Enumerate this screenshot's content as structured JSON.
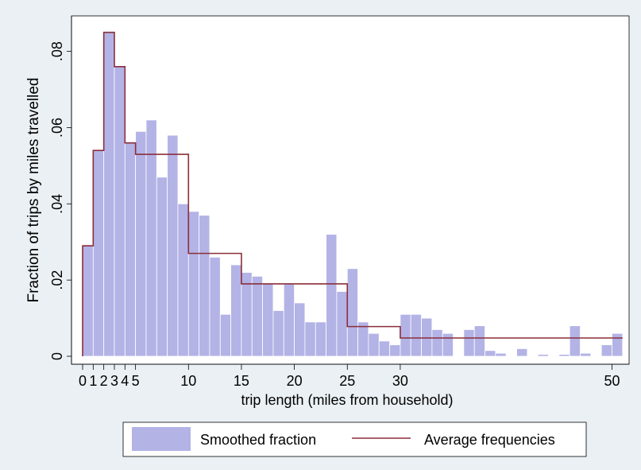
{
  "chart_data": {
    "type": "bar",
    "xlabel": "trip length (miles from household)",
    "ylabel": "Fraction of trips by miles travelled",
    "x_ticks": [
      0,
      1,
      2,
      3,
      4,
      5,
      10,
      15,
      20,
      25,
      30,
      50
    ],
    "x_tick_labels": [
      "0",
      "1",
      "2",
      "3",
      "4",
      "5",
      "10",
      "15",
      "20",
      "25",
      "30",
      "50"
    ],
    "y_ticks": [
      0,
      0.02,
      0.04,
      0.06,
      0.08
    ],
    "y_tick_labels": [
      "0",
      ".02",
      ".04",
      ".06",
      ".08"
    ],
    "xlim": [
      -0.5,
      51
    ],
    "ylim": [
      0,
      0.09
    ],
    "grid": false,
    "legend_position": "bottom",
    "colors": {
      "bar_fill": "#b3b3e6",
      "bar_stroke": "#ffffff",
      "step_line": "#8b2f3a",
      "plot_background": "#ffffff",
      "outer_background": "#eaf0f4"
    },
    "series": [
      {
        "name": "Smoothed fraction",
        "type": "bar",
        "bin_width": 1,
        "x": [
          0,
          1,
          2,
          3,
          4,
          5,
          6,
          7,
          8,
          9,
          10,
          11,
          12,
          13,
          14,
          15,
          16,
          17,
          18,
          19,
          20,
          21,
          22,
          23,
          24,
          25,
          26,
          27,
          28,
          29,
          30,
          31,
          32,
          33,
          34,
          35,
          36,
          37,
          38,
          39,
          40,
          41,
          42,
          43,
          44,
          45,
          46,
          47,
          48,
          49,
          50
        ],
        "values": [
          0.029,
          0.054,
          0.085,
          0.076,
          0.056,
          0.059,
          0.062,
          0.047,
          0.058,
          0.04,
          0.038,
          0.037,
          0.026,
          0.011,
          0.024,
          0.022,
          0.021,
          0.019,
          0.012,
          0.019,
          0.014,
          0.009,
          0.009,
          0.032,
          0.017,
          0.023,
          0.009,
          0.006,
          0.004,
          0.003,
          0.011,
          0.011,
          0.01,
          0.007,
          0.006,
          0,
          0.007,
          0.008,
          0.0015,
          0.0008,
          0,
          0.002,
          0,
          0.0005,
          0,
          0.0005,
          0.008,
          0.0008,
          0,
          0.003,
          0.006
        ]
      },
      {
        "name": "Average frequencies",
        "type": "step",
        "segments": [
          {
            "x0": 0,
            "x1": 1,
            "y": 0.029
          },
          {
            "x0": 1,
            "x1": 2,
            "y": 0.054
          },
          {
            "x0": 2,
            "x1": 3,
            "y": 0.085
          },
          {
            "x0": 3,
            "x1": 4,
            "y": 0.076
          },
          {
            "x0": 4,
            "x1": 5,
            "y": 0.056
          },
          {
            "x0": 5,
            "x1": 10,
            "y": 0.053
          },
          {
            "x0": 10,
            "x1": 15,
            "y": 0.027
          },
          {
            "x0": 15,
            "x1": 25,
            "y": 0.019
          },
          {
            "x0": 25,
            "x1": 30,
            "y": 0.0078
          },
          {
            "x0": 30,
            "x1": 51,
            "y": 0.0048
          }
        ]
      }
    ]
  }
}
